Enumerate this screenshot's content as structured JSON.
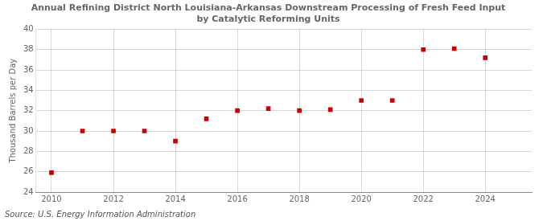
{
  "chart_data": {
    "type": "scatter",
    "title": "Annual Refining District North Louisiana-Arkansas Downstream Processing of Fresh Feed Input\nby Catalytic Reforming Units",
    "ylabel": "Thousand Barrels per Day",
    "source": "Source: U.S. Energy Information Administration",
    "x": [
      2010,
      2011,
      2012,
      2013,
      2014,
      2015,
      2016,
      2017,
      2018,
      2019,
      2020,
      2021,
      2022,
      2023,
      2024
    ],
    "values": [
      25.9,
      30.0,
      30.0,
      30.0,
      29.0,
      31.2,
      32.0,
      32.2,
      32.0,
      32.1,
      33.0,
      33.0,
      38.0,
      38.1,
      37.2
    ],
    "color": "#cc0000",
    "marker": "square",
    "xlim": [
      2009.5,
      2025.5
    ],
    "ylim": [
      24,
      40
    ],
    "xticks": [
      2010,
      2012,
      2014,
      2016,
      2018,
      2020,
      2022,
      2024
    ],
    "yticks": [
      24,
      26,
      28,
      30,
      32,
      34,
      36,
      38,
      40
    ],
    "grid": true
  }
}
